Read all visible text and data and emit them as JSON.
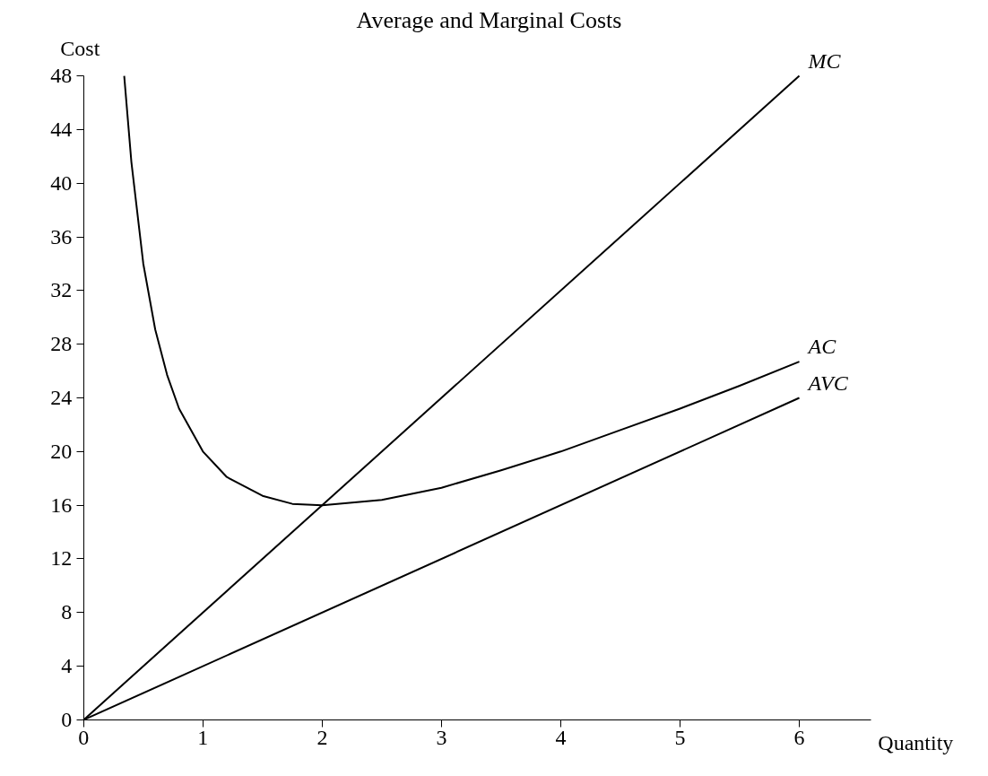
{
  "chart_data": {
    "type": "line",
    "title": "Average and Marginal Costs",
    "xlabel": "Quantity",
    "ylabel": "Cost",
    "xlim": [
      0,
      6.6
    ],
    "ylim": [
      0,
      48
    ],
    "xticks": [
      0,
      1,
      2,
      3,
      4,
      5,
      6
    ],
    "yticks": [
      0,
      4,
      8,
      12,
      16,
      20,
      24,
      28,
      32,
      36,
      40,
      44,
      48
    ],
    "grid": false,
    "marker": "none",
    "line_style": "solid",
    "series": [
      {
        "name": "MC",
        "color": "#000000",
        "x": [
          0,
          6
        ],
        "values": [
          0,
          48
        ]
      },
      {
        "name": "AC",
        "color": "#000000",
        "x": [
          0.34,
          0.4,
          0.5,
          0.6,
          0.7,
          0.8,
          1,
          1.2,
          1.5,
          1.75,
          2,
          2.5,
          3,
          3.5,
          4,
          4.5,
          5,
          5.5,
          6
        ],
        "values": [
          48,
          41.6,
          34,
          29.1,
          25.7,
          23.2,
          20,
          18.1,
          16.7,
          16.1,
          16,
          16.4,
          17.3,
          18.6,
          20,
          21.6,
          23.2,
          24.9,
          26.7
        ]
      },
      {
        "name": "AVC",
        "color": "#000000",
        "x": [
          0,
          6
        ],
        "values": [
          0,
          24
        ]
      }
    ]
  }
}
